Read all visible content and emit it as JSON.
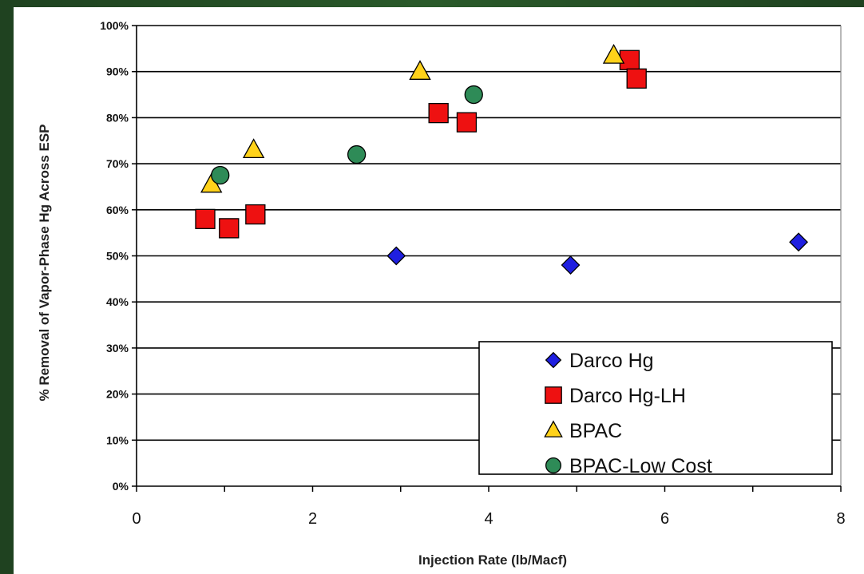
{
  "chart_data": {
    "type": "scatter",
    "xlabel": "Injection Rate (lb/Macf)",
    "ylabel": "% Removal of Vapor-Phase Hg Across ESP",
    "xlim": [
      0,
      8
    ],
    "ylim": [
      0,
      100
    ],
    "x_ticks": [
      "0",
      "2",
      "4",
      "6",
      "8"
    ],
    "y_ticks": [
      "0%",
      "10%",
      "20%",
      "30%",
      "40%",
      "50%",
      "60%",
      "70%",
      "80%",
      "90%",
      "100%"
    ],
    "grid": "horizontal",
    "legend_position": "bottom-right",
    "series": [
      {
        "name": "Darco Hg",
        "marker": "diamond",
        "color": "#1f1fe0",
        "points": [
          {
            "x": 2.95,
            "y": 50
          },
          {
            "x": 4.93,
            "y": 48
          },
          {
            "x": 7.52,
            "y": 53
          }
        ]
      },
      {
        "name": "Darco Hg-LH",
        "marker": "square",
        "color": "#ee1111",
        "points": [
          {
            "x": 0.78,
            "y": 58
          },
          {
            "x": 1.05,
            "y": 56
          },
          {
            "x": 1.35,
            "y": 59
          },
          {
            "x": 3.43,
            "y": 81
          },
          {
            "x": 3.75,
            "y": 79
          },
          {
            "x": 5.6,
            "y": 92.5
          },
          {
            "x": 5.68,
            "y": 88.5
          }
        ]
      },
      {
        "name": "BPAC",
        "marker": "triangle",
        "color": "#ffd21a",
        "points": [
          {
            "x": 0.85,
            "y": 65.5
          },
          {
            "x": 1.33,
            "y": 73
          },
          {
            "x": 3.22,
            "y": 90
          },
          {
            "x": 5.42,
            "y": 93.5
          }
        ]
      },
      {
        "name": "BPAC-Low Cost",
        "marker": "circle",
        "color": "#2e8b57",
        "points": [
          {
            "x": 0.95,
            "y": 67.5
          },
          {
            "x": 2.5,
            "y": 72
          },
          {
            "x": 3.83,
            "y": 85
          }
        ]
      }
    ]
  }
}
